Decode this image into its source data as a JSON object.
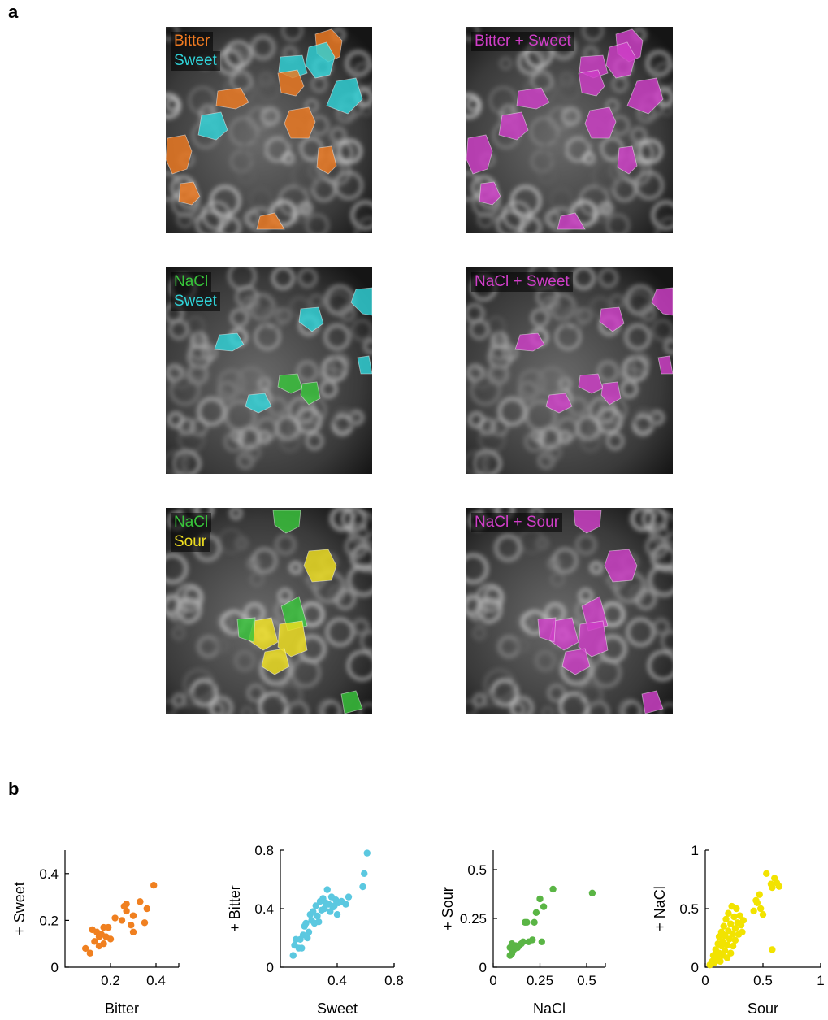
{
  "panel_a": {
    "letter": "a",
    "images": [
      {
        "key": "bs_single",
        "legend": [
          {
            "text": "Bitter",
            "color": "#ef7a21"
          },
          {
            "text": "Sweet",
            "color": "#2fd3d8"
          }
        ]
      },
      {
        "key": "bs_combo",
        "legend": [
          {
            "text": "Bitter + Sweet",
            "color": "#d03ec8"
          }
        ]
      },
      {
        "key": "ns_single",
        "legend": [
          {
            "text": "NaCl",
            "color": "#38c43a"
          },
          {
            "text": "Sweet",
            "color": "#2fd3d8"
          }
        ]
      },
      {
        "key": "ns_combo",
        "legend": [
          {
            "text": "NaCl + Sweet",
            "color": "#d03ec8"
          }
        ]
      },
      {
        "key": "nso_single",
        "legend": [
          {
            "text": "NaCl",
            "color": "#38c43a"
          },
          {
            "text": "Sour",
            "color": "#f0e020"
          }
        ]
      },
      {
        "key": "nso_combo",
        "legend": [
          {
            "text": "NaCl + Sour",
            "color": "#d03ec8"
          }
        ]
      }
    ]
  },
  "panel_b": {
    "letter": "b"
  },
  "chart_data": [
    {
      "type": "scatter",
      "xlabel": "Bitter",
      "ylabel": "+ Sweet",
      "xlim": [
        0,
        0.5
      ],
      "ylim": [
        0,
        0.5
      ],
      "xticks": [
        0.2,
        0.4
      ],
      "xtick_labels": [
        "0.2",
        "0.4"
      ],
      "yticks": [
        0,
        0.2,
        0.4
      ],
      "ytick_labels": [
        "0",
        "0.2",
        "0.4"
      ],
      "color": "#f08020",
      "points": [
        [
          0.09,
          0.08
        ],
        [
          0.11,
          0.06
        ],
        [
          0.12,
          0.16
        ],
        [
          0.13,
          0.11
        ],
        [
          0.14,
          0.15
        ],
        [
          0.15,
          0.09
        ],
        [
          0.15,
          0.13
        ],
        [
          0.16,
          0.14
        ],
        [
          0.17,
          0.1
        ],
        [
          0.17,
          0.17
        ],
        [
          0.18,
          0.13
        ],
        [
          0.19,
          0.17
        ],
        [
          0.2,
          0.12
        ],
        [
          0.22,
          0.21
        ],
        [
          0.25,
          0.2
        ],
        [
          0.26,
          0.26
        ],
        [
          0.27,
          0.24
        ],
        [
          0.27,
          0.27
        ],
        [
          0.29,
          0.18
        ],
        [
          0.3,
          0.15
        ],
        [
          0.3,
          0.22
        ],
        [
          0.33,
          0.28
        ],
        [
          0.35,
          0.19
        ],
        [
          0.36,
          0.25
        ],
        [
          0.39,
          0.35
        ]
      ]
    },
    {
      "type": "scatter",
      "xlabel": "Sweet",
      "ylabel": "+ Bitter",
      "xlim": [
        0,
        0.8
      ],
      "ylim": [
        0,
        0.8
      ],
      "xticks": [
        0.4,
        0.8
      ],
      "xtick_labels": [
        "0.4",
        "0.8"
      ],
      "yticks": [
        0,
        0.4,
        0.8
      ],
      "ytick_labels": [
        "0",
        "0.4",
        "0.8"
      ],
      "color": "#5bc8e0",
      "points": [
        [
          0.09,
          0.08
        ],
        [
          0.1,
          0.15
        ],
        [
          0.11,
          0.19
        ],
        [
          0.13,
          0.13
        ],
        [
          0.14,
          0.19
        ],
        [
          0.15,
          0.13
        ],
        [
          0.16,
          0.22
        ],
        [
          0.17,
          0.28
        ],
        [
          0.18,
          0.3
        ],
        [
          0.19,
          0.2
        ],
        [
          0.2,
          0.24
        ],
        [
          0.21,
          0.36
        ],
        [
          0.22,
          0.32
        ],
        [
          0.23,
          0.38
        ],
        [
          0.24,
          0.3
        ],
        [
          0.25,
          0.42
        ],
        [
          0.26,
          0.35
        ],
        [
          0.27,
          0.31
        ],
        [
          0.28,
          0.45
        ],
        [
          0.29,
          0.39
        ],
        [
          0.3,
          0.47
        ],
        [
          0.31,
          0.4
        ],
        [
          0.32,
          0.44
        ],
        [
          0.33,
          0.53
        ],
        [
          0.34,
          0.43
        ],
        [
          0.35,
          0.38
        ],
        [
          0.36,
          0.48
        ],
        [
          0.37,
          0.41
        ],
        [
          0.38,
          0.42
        ],
        [
          0.39,
          0.46
        ],
        [
          0.4,
          0.36
        ],
        [
          0.41,
          0.44
        ],
        [
          0.43,
          0.45
        ],
        [
          0.46,
          0.43
        ],
        [
          0.48,
          0.48
        ],
        [
          0.58,
          0.55
        ],
        [
          0.59,
          0.64
        ],
        [
          0.61,
          0.78
        ]
      ]
    },
    {
      "type": "scatter",
      "xlabel": "NaCl",
      "ylabel": "+ Sour",
      "xlim": [
        0,
        0.6
      ],
      "ylim": [
        0,
        0.6
      ],
      "xticks": [
        0,
        0.25,
        0.5
      ],
      "xtick_labels": [
        "0",
        "0.25",
        "0.5"
      ],
      "yticks": [
        0,
        0.25,
        0.5
      ],
      "ytick_labels": [
        "0",
        "0.25",
        "0.5"
      ],
      "color": "#5ab545",
      "points": [
        [
          0.09,
          0.06
        ],
        [
          0.09,
          0.1
        ],
        [
          0.1,
          0.07
        ],
        [
          0.1,
          0.12
        ],
        [
          0.11,
          0.09
        ],
        [
          0.12,
          0.11
        ],
        [
          0.13,
          0.1
        ],
        [
          0.14,
          0.11
        ],
        [
          0.15,
          0.12
        ],
        [
          0.16,
          0.13
        ],
        [
          0.17,
          0.23
        ],
        [
          0.18,
          0.23
        ],
        [
          0.19,
          0.13
        ],
        [
          0.21,
          0.14
        ],
        [
          0.22,
          0.23
        ],
        [
          0.23,
          0.28
        ],
        [
          0.25,
          0.35
        ],
        [
          0.26,
          0.13
        ],
        [
          0.27,
          0.31
        ],
        [
          0.32,
          0.4
        ],
        [
          0.53,
          0.38
        ]
      ]
    },
    {
      "type": "scatter",
      "xlabel": "Sour",
      "ylabel": "+ NaCl",
      "xlim": [
        0,
        1
      ],
      "ylim": [
        0,
        1
      ],
      "xticks": [
        0,
        0.5,
        1
      ],
      "xtick_labels": [
        "0",
        "0.5",
        "1"
      ],
      "yticks": [
        0,
        0.5,
        1
      ],
      "ytick_labels": [
        "0",
        "0.5",
        "1"
      ],
      "color": "#f2e300",
      "points": [
        [
          0.04,
          0.02
        ],
        [
          0.06,
          0.05
        ],
        [
          0.07,
          0.1
        ],
        [
          0.08,
          0.04
        ],
        [
          0.09,
          0.15
        ],
        [
          0.1,
          0.08
        ],
        [
          0.11,
          0.2
        ],
        [
          0.12,
          0.12
        ],
        [
          0.12,
          0.26
        ],
        [
          0.13,
          0.05
        ],
        [
          0.14,
          0.18
        ],
        [
          0.14,
          0.3
        ],
        [
          0.15,
          0.1
        ],
        [
          0.15,
          0.22
        ],
        [
          0.16,
          0.35
        ],
        [
          0.17,
          0.14
        ],
        [
          0.17,
          0.27
        ],
        [
          0.18,
          0.41
        ],
        [
          0.19,
          0.08
        ],
        [
          0.19,
          0.19
        ],
        [
          0.2,
          0.31
        ],
        [
          0.2,
          0.46
        ],
        [
          0.21,
          0.24
        ],
        [
          0.22,
          0.12
        ],
        [
          0.22,
          0.37
        ],
        [
          0.23,
          0.52
        ],
        [
          0.24,
          0.28
        ],
        [
          0.24,
          0.18
        ],
        [
          0.25,
          0.43
        ],
        [
          0.26,
          0.33
        ],
        [
          0.26,
          0.23
        ],
        [
          0.27,
          0.5
        ],
        [
          0.28,
          0.38
        ],
        [
          0.29,
          0.28
        ],
        [
          0.3,
          0.44
        ],
        [
          0.31,
          0.36
        ],
        [
          0.32,
          0.3
        ],
        [
          0.33,
          0.4
        ],
        [
          0.42,
          0.48
        ],
        [
          0.44,
          0.57
        ],
        [
          0.45,
          0.55
        ],
        [
          0.47,
          0.62
        ],
        [
          0.48,
          0.5
        ],
        [
          0.5,
          0.45
        ],
        [
          0.53,
          0.8
        ],
        [
          0.57,
          0.71
        ],
        [
          0.58,
          0.68
        ],
        [
          0.6,
          0.76
        ],
        [
          0.62,
          0.72
        ],
        [
          0.64,
          0.69
        ],
        [
          0.58,
          0.15
        ]
      ]
    }
  ]
}
